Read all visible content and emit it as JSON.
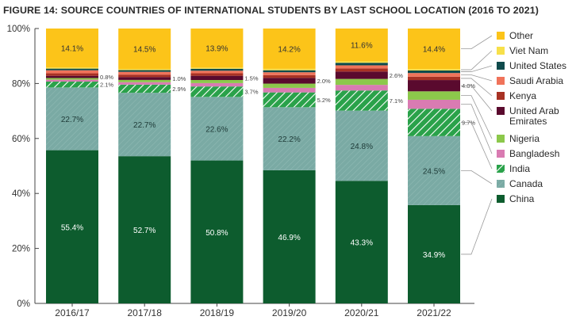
{
  "chart_data": {
    "type": "bar",
    "stacked": true,
    "title": "FIGURE 14: SOURCE COUNTRIES OF INTERNATIONAL STUDENTS BY LAST SCHOOL LOCATION (2016 TO 2021)",
    "xlabel": "",
    "ylabel": "",
    "ylim": [
      0,
      100
    ],
    "yticks": [
      "0%",
      "20%",
      "40%",
      "60%",
      "80%",
      "100%"
    ],
    "legend_position": "right",
    "categories": [
      "2016/17",
      "2017/18",
      "2018/19",
      "2019/20",
      "2020/21",
      "2021/22"
    ],
    "series": [
      {
        "name": "China",
        "color": "#0d5c2e",
        "pattern": "none",
        "values": [
          55.4,
          52.7,
          50.8,
          46.9,
          43.3,
          34.9
        ],
        "labels": [
          "55.4%",
          "52.7%",
          "50.8%",
          "46.9%",
          "43.3%",
          "34.9%"
        ]
      },
      {
        "name": "Canada",
        "color": "#7aaaa4",
        "pattern": "hatch-light",
        "values": [
          22.7,
          22.7,
          22.6,
          22.2,
          24.8,
          24.5
        ],
        "labels": [
          "22.7%",
          "22.7%",
          "22.6%",
          "22.2%",
          "24.8%",
          "24.5%"
        ]
      },
      {
        "name": "India",
        "color": "#2aa24a",
        "pattern": "hatch",
        "values": [
          2.1,
          2.9,
          3.7,
          5.2,
          7.1,
          9.7
        ],
        "labels": [
          "2.1%",
          "2.9%",
          "3.7%",
          "5.2%",
          "7.1%",
          "9.7%"
        ]
      },
      {
        "name": "Bangladesh",
        "color": "#d97bb2",
        "pattern": "none",
        "values": [
          0.7,
          0.9,
          1.2,
          1.6,
          2.0,
          3.2
        ]
      },
      {
        "name": "Nigeria",
        "color": "#8cc84b",
        "pattern": "none",
        "values": [
          0.6,
          0.8,
          1.1,
          1.5,
          2.1,
          3.0
        ]
      },
      {
        "name": "United Arab Emirates",
        "color": "#5a0a2e",
        "pattern": "none",
        "values": [
          0.8,
          1.0,
          1.5,
          2.0,
          2.6,
          4.0
        ],
        "labels": [
          "0.8%",
          "1.0%",
          "1.5%",
          "2.0%",
          "2.6%",
          "4.0%"
        ]
      },
      {
        "name": "Kenya",
        "color": "#a83224",
        "pattern": "none",
        "values": [
          0.9,
          0.9,
          0.9,
          1.0,
          1.1,
          1.2
        ]
      },
      {
        "name": "Saudi Arabia",
        "color": "#f0735a",
        "pattern": "none",
        "values": [
          1.1,
          1.0,
          0.9,
          1.0,
          1.1,
          1.3
        ]
      },
      {
        "name": "United States",
        "color": "#0f4b4c",
        "pattern": "none",
        "values": [
          0.6,
          0.6,
          0.7,
          0.7,
          0.9,
          0.9
        ]
      },
      {
        "name": "Viet Nam",
        "color": "#f7e04a",
        "pattern": "none",
        "values": [
          0.4,
          0.4,
          0.4,
          0.5,
          0.5,
          0.5
        ]
      },
      {
        "name": "Other",
        "color": "#fcc419",
        "pattern": "none",
        "values": [
          14.1,
          14.5,
          13.9,
          14.2,
          11.6,
          14.4
        ],
        "labels": [
          "14.1%",
          "14.5%",
          "13.9%",
          "14.2%",
          "11.6%",
          "14.4%"
        ]
      }
    ],
    "legend_order": [
      "Other",
      "Viet Nam",
      "United States",
      "Saudi Arabia",
      "Kenya",
      "United Arab Emirates",
      "Nigeria",
      "Bangladesh",
      "India",
      "Canada",
      "China"
    ]
  }
}
